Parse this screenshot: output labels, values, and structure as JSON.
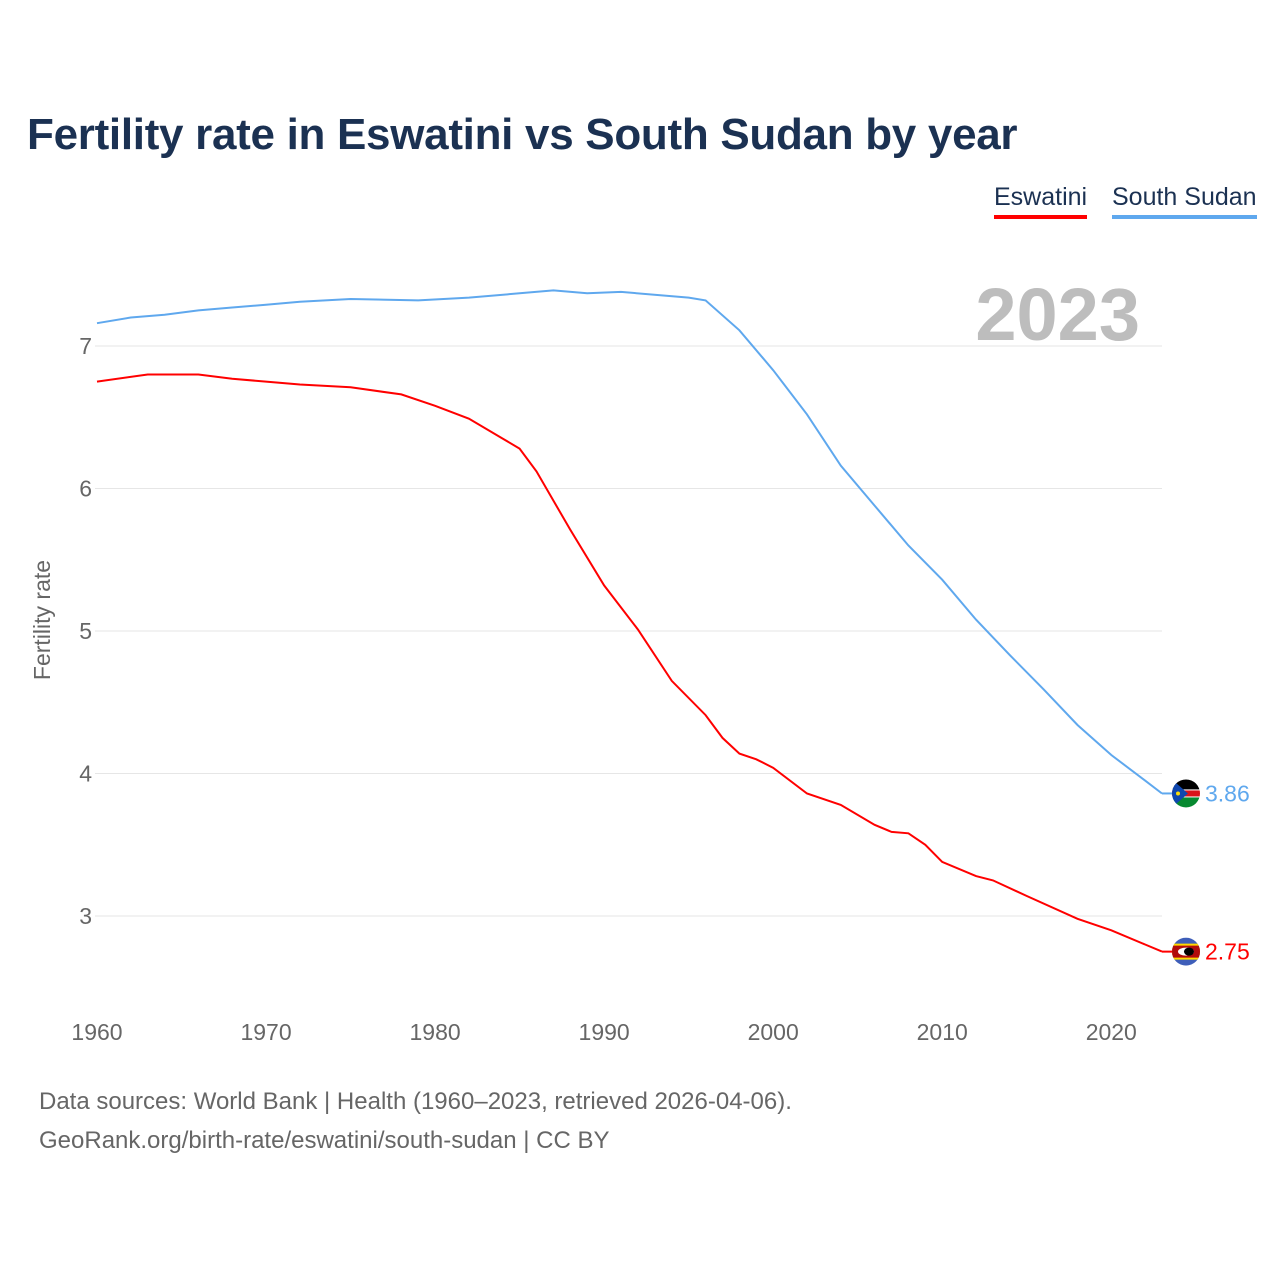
{
  "title": "Fertility rate in Eswatini vs South Sudan by year",
  "legend": [
    "Eswatini",
    "South Sudan"
  ],
  "year_label": "2023",
  "footer": {
    "sources": "Data sources: World Bank | Health (1960–2023, retrieved 2026-04-06).",
    "link": "GeoRank.org/birth-rate/eswatini/south-sudan | CC BY"
  },
  "chart_data": {
    "type": "line",
    "title": "Fertility rate in Eswatini vs South Sudan by year",
    "xlabel": "",
    "ylabel": "Fertility rate",
    "xlim": [
      1960,
      2023
    ],
    "ylim": [
      2.5,
      7.5
    ],
    "x_ticks": [
      "1960",
      "1970",
      "1980",
      "1990",
      "2000",
      "2010",
      "2020"
    ],
    "y_ticks": [
      "3",
      "4",
      "5",
      "6",
      "7"
    ],
    "grid": true,
    "legend_position": "top-right",
    "series": [
      {
        "name": "Eswatini",
        "color": "#ff0000",
        "end_label": "2.75",
        "x": [
          1960,
          1963,
          1966,
          1968,
          1970,
          1972,
          1975,
          1978,
          1980,
          1982,
          1984,
          1985,
          1986,
          1988,
          1990,
          1992,
          1994,
          1996,
          1997,
          1998,
          1999,
          2000,
          2002,
          2004,
          2006,
          2007,
          2008,
          2009,
          2010,
          2012,
          2013,
          2015,
          2018,
          2020,
          2022,
          2023
        ],
        "y": [
          6.75,
          6.8,
          6.8,
          6.77,
          6.75,
          6.73,
          6.71,
          6.66,
          6.58,
          6.49,
          6.35,
          6.28,
          6.12,
          5.71,
          5.32,
          5.01,
          4.65,
          4.41,
          4.25,
          4.14,
          4.1,
          4.04,
          3.86,
          3.78,
          3.64,
          3.59,
          3.58,
          3.5,
          3.38,
          3.28,
          3.25,
          3.14,
          2.98,
          2.9,
          2.8,
          2.75
        ]
      },
      {
        "name": "South Sudan",
        "color": "#5fa8ee",
        "end_label": "3.86",
        "x": [
          1960,
          1962,
          1964,
          1966,
          1968,
          1970,
          1972,
          1975,
          1979,
          1982,
          1985,
          1987,
          1989,
          1991,
          1995,
          1996,
          1998,
          2000,
          2002,
          2004,
          2006,
          2008,
          2010,
          2012,
          2014,
          2016,
          2018,
          2020,
          2022,
          2023
        ],
        "y": [
          7.16,
          7.2,
          7.22,
          7.25,
          7.27,
          7.29,
          7.31,
          7.33,
          7.32,
          7.34,
          7.37,
          7.39,
          7.37,
          7.38,
          7.34,
          7.32,
          7.11,
          6.83,
          6.52,
          6.16,
          5.88,
          5.6,
          5.36,
          5.08,
          4.83,
          4.59,
          4.34,
          4.13,
          3.95,
          3.86
        ]
      }
    ]
  }
}
